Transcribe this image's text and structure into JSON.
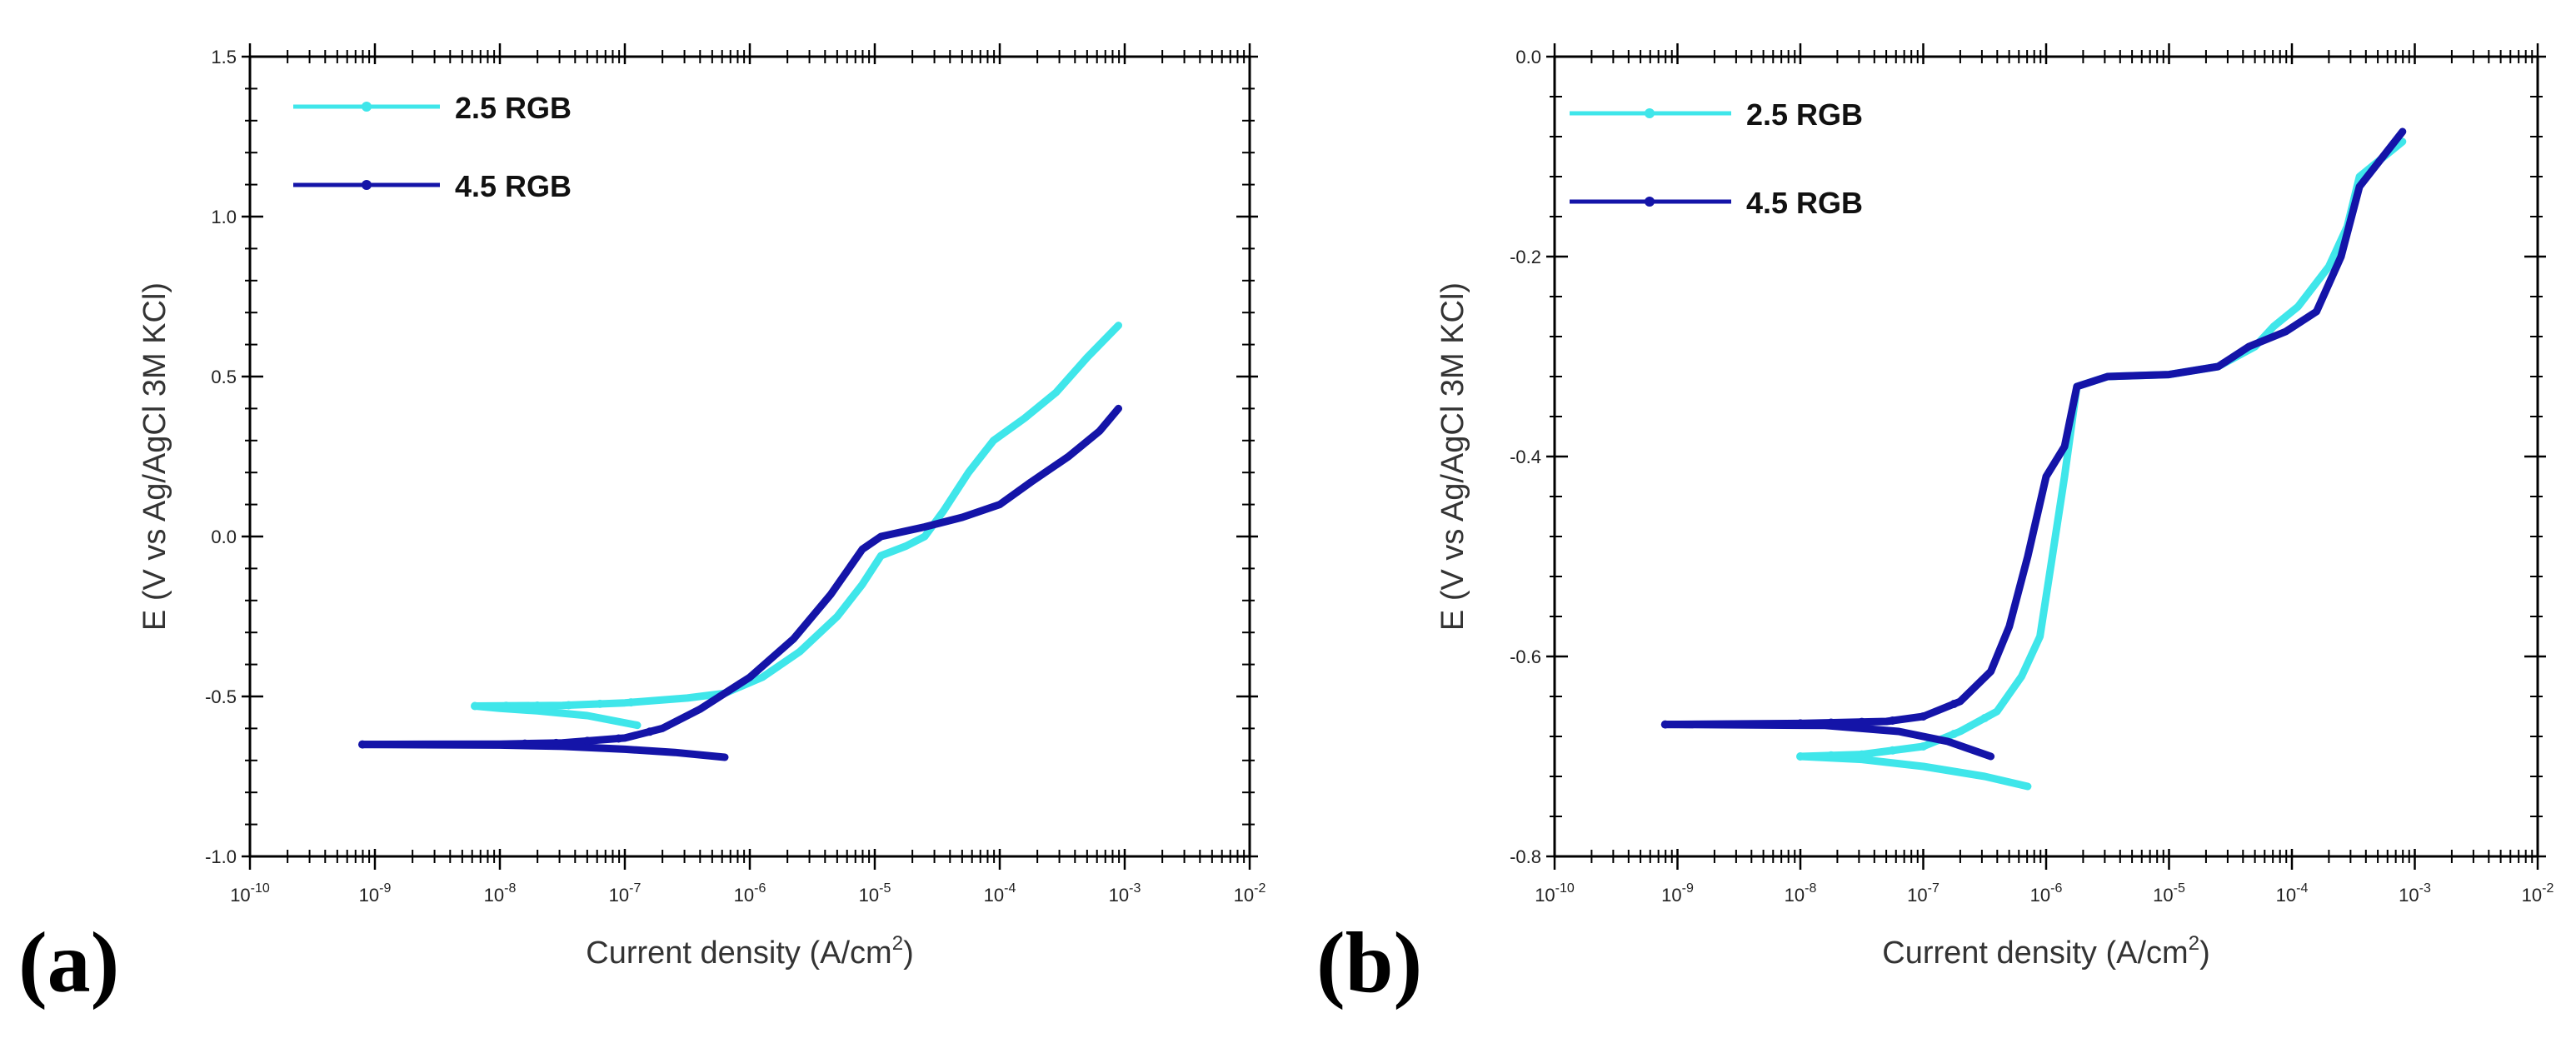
{
  "colors": {
    "series_2_5": "#3fe6ea",
    "series_4_5": "#1414a8",
    "axis": "#000000"
  },
  "chart_data": [
    {
      "id": "a",
      "panel_label": "(a)",
      "type": "line",
      "xscale": "log",
      "xlim": [
        -10,
        -2
      ],
      "ylim": [
        -1.0,
        1.5
      ],
      "yticks": [
        -1.0,
        -0.5,
        0.0,
        0.5,
        1.0,
        1.5
      ],
      "ytick_labels": [
        "-1.0",
        "-0.5",
        "0.0",
        "0.5",
        "1.0",
        "1.5"
      ],
      "xticks": [
        -10,
        -9,
        -8,
        -7,
        -6,
        -5,
        -4,
        -3,
        -2
      ],
      "xtick_bases": [
        "10",
        "10",
        "10",
        "10",
        "10",
        "10",
        "10",
        "10",
        "10"
      ],
      "xtick_exps": [
        "-10",
        "-9",
        "-8",
        "-7",
        "-6",
        "-5",
        "-4",
        "-3",
        "-2"
      ],
      "xlabel": "Current density (A/cm",
      "xlabel_sup": "2",
      "xlabel_end": ")",
      "ylabel": "E (V vs Ag/AgCl 3M KCl)",
      "legend": {
        "placement": "top-left"
      },
      "series": [
        {
          "name": "2.5 RGB",
          "color_key": "series_2_5",
          "cathodic": [
            [
              -6.9,
              -0.59
            ],
            [
              -7.3,
              -0.56
            ],
            [
              -7.7,
              -0.545
            ],
            [
              -8.0,
              -0.537
            ],
            [
              -8.2,
              -0.53
            ]
          ],
          "anodic": [
            [
              -8.2,
              -0.53
            ],
            [
              -7.5,
              -0.528
            ],
            [
              -7.0,
              -0.52
            ],
            [
              -6.5,
              -0.505
            ],
            [
              -6.2,
              -0.49
            ],
            [
              -5.9,
              -0.44
            ],
            [
              -5.6,
              -0.36
            ],
            [
              -5.3,
              -0.25
            ],
            [
              -5.1,
              -0.15
            ],
            [
              -4.95,
              -0.06
            ],
            [
              -4.75,
              -0.03
            ],
            [
              -4.6,
              0.0
            ],
            [
              -4.45,
              0.08
            ],
            [
              -4.25,
              0.2
            ],
            [
              -4.05,
              0.3
            ],
            [
              -3.8,
              0.37
            ],
            [
              -3.55,
              0.45
            ],
            [
              -3.3,
              0.56
            ],
            [
              -3.05,
              0.66
            ]
          ],
          "markers": [
            -8.2,
            -7.95,
            -7.7,
            -7.45,
            -7.2,
            -6.95
          ]
        },
        {
          "name": "4.5 RGB",
          "color_key": "series_4_5",
          "cathodic": [
            [
              -6.2,
              -0.69
            ],
            [
              -6.6,
              -0.675
            ],
            [
              -7.0,
              -0.665
            ],
            [
              -7.5,
              -0.656
            ],
            [
              -8.0,
              -0.652
            ],
            [
              -9.1,
              -0.65
            ]
          ],
          "anodic": [
            [
              -9.1,
              -0.65
            ],
            [
              -8.0,
              -0.649
            ],
            [
              -7.5,
              -0.645
            ],
            [
              -7.0,
              -0.63
            ],
            [
              -6.7,
              -0.6
            ],
            [
              -6.4,
              -0.54
            ],
            [
              -6.0,
              -0.44
            ],
            [
              -5.65,
              -0.32
            ],
            [
              -5.35,
              -0.18
            ],
            [
              -5.1,
              -0.04
            ],
            [
              -4.95,
              0.0
            ],
            [
              -4.6,
              0.03
            ],
            [
              -4.3,
              0.06
            ],
            [
              -4.0,
              0.1
            ],
            [
              -3.75,
              0.17
            ],
            [
              -3.45,
              0.25
            ],
            [
              -3.2,
              0.33
            ],
            [
              -3.05,
              0.4
            ]
          ],
          "markers": [
            -9.1,
            -7.8,
            -7.55,
            -7.3,
            -7.05,
            -6.8
          ]
        }
      ]
    },
    {
      "id": "b",
      "panel_label": "(b)",
      "type": "line",
      "xscale": "log",
      "xlim": [
        -10,
        -2
      ],
      "ylim": [
        -0.8,
        0.0
      ],
      "yticks": [
        -0.8,
        -0.6,
        -0.4,
        -0.2,
        0.0
      ],
      "ytick_labels": [
        "-0.8",
        "-0.6",
        "-0.4",
        "-0.2",
        "0.0"
      ],
      "xticks": [
        -10,
        -9,
        -8,
        -7,
        -6,
        -5,
        -4,
        -3,
        -2
      ],
      "xtick_bases": [
        "10",
        "10",
        "10",
        "10",
        "10",
        "10",
        "10",
        "10",
        "10"
      ],
      "xtick_exps": [
        "-10",
        "-9",
        "-8",
        "-7",
        "-6",
        "-5",
        "-4",
        "-3",
        "-2"
      ],
      "xlabel": "Current density (A/cm",
      "xlabel_sup": "2",
      "xlabel_end": ")",
      "ylabel": "E (V vs Ag/AgCl 3M KCl)",
      "legend": {
        "placement": "top-left"
      },
      "series": [
        {
          "name": "2.5 RGB",
          "color_key": "series_2_5",
          "cathodic": [
            [
              -6.15,
              -0.73
            ],
            [
              -6.5,
              -0.72
            ],
            [
              -7.0,
              -0.71
            ],
            [
              -7.5,
              -0.703
            ],
            [
              -8.0,
              -0.7
            ]
          ],
          "anodic": [
            [
              -8.0,
              -0.7
            ],
            [
              -7.5,
              -0.698
            ],
            [
              -7.0,
              -0.69
            ],
            [
              -6.7,
              -0.675
            ],
            [
              -6.4,
              -0.655
            ],
            [
              -6.2,
              -0.62
            ],
            [
              -6.05,
              -0.58
            ],
            [
              -5.95,
              -0.5
            ],
            [
              -5.85,
              -0.42
            ],
            [
              -5.75,
              -0.33
            ],
            [
              -5.5,
              -0.32
            ],
            [
              -5.0,
              -0.318
            ],
            [
              -4.6,
              -0.31
            ],
            [
              -4.3,
              -0.29
            ],
            [
              -4.15,
              -0.27
            ],
            [
              -3.95,
              -0.25
            ],
            [
              -3.7,
              -0.21
            ],
            [
              -3.55,
              -0.17
            ],
            [
              -3.45,
              -0.12
            ],
            [
              -3.1,
              -0.085
            ]
          ],
          "markers": [
            -8.0,
            -7.75,
            -7.5,
            -7.25,
            -7.0,
            -6.75,
            -6.5
          ]
        },
        {
          "name": "4.5 RGB",
          "color_key": "series_4_5",
          "cathodic": [
            [
              -6.45,
              -0.7
            ],
            [
              -6.8,
              -0.685
            ],
            [
              -7.2,
              -0.675
            ],
            [
              -7.8,
              -0.669
            ],
            [
              -9.1,
              -0.668
            ]
          ],
          "anodic": [
            [
              -9.1,
              -0.668
            ],
            [
              -8.0,
              -0.667
            ],
            [
              -7.3,
              -0.665
            ],
            [
              -7.0,
              -0.66
            ],
            [
              -6.7,
              -0.645
            ],
            [
              -6.45,
              -0.615
            ],
            [
              -6.3,
              -0.57
            ],
            [
              -6.15,
              -0.5
            ],
            [
              -6.0,
              -0.42
            ],
            [
              -5.85,
              -0.39
            ],
            [
              -5.75,
              -0.33
            ],
            [
              -5.5,
              -0.32
            ],
            [
              -5.0,
              -0.318
            ],
            [
              -4.6,
              -0.31
            ],
            [
              -4.35,
              -0.29
            ],
            [
              -4.05,
              -0.275
            ],
            [
              -3.8,
              -0.255
            ],
            [
              -3.6,
              -0.2
            ],
            [
              -3.45,
              -0.13
            ],
            [
              -3.1,
              -0.075
            ]
          ],
          "markers": [
            -9.1,
            -8.0,
            -7.75,
            -7.5,
            -7.25,
            -7.0,
            -6.75
          ]
        }
      ]
    }
  ]
}
